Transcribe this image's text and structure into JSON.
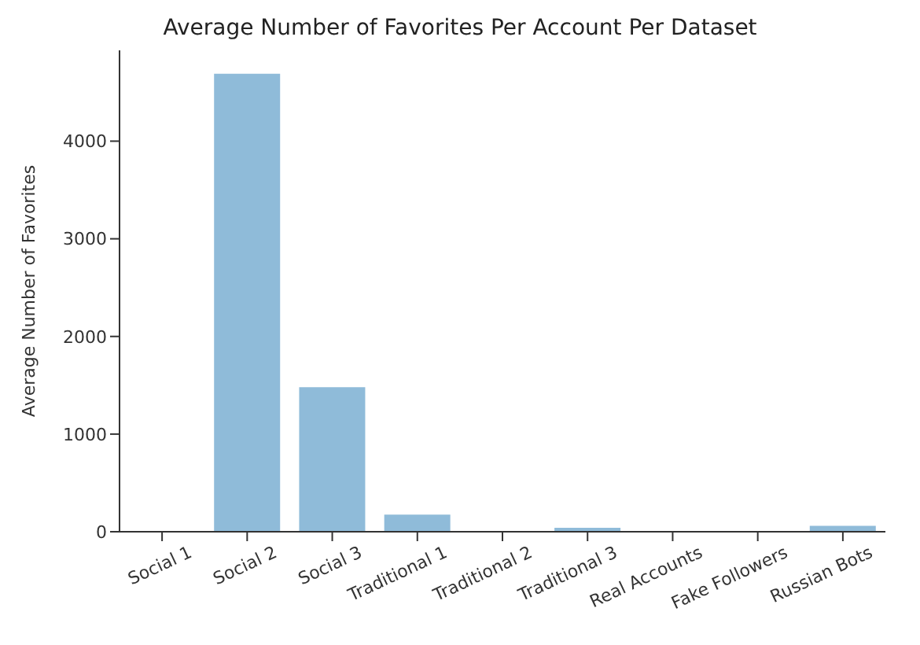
{
  "chart_data": {
    "type": "bar",
    "title": "Average Number of Favorites Per Account Per Dataset",
    "ylabel": "Average Number of Favorites",
    "categories": [
      "Social 1",
      "Social 2",
      "Social 3",
      "Traditional 1",
      "Traditional 2",
      "Traditional 3",
      "Real Accounts",
      "Fake Followers",
      "Russian Bots"
    ],
    "values": [
      0,
      4690,
      1480,
      175,
      0,
      40,
      0,
      0,
      60
    ],
    "color": "#8fbbd9",
    "ylim": [
      0,
      4930
    ],
    "yticks": [
      0,
      1000,
      2000,
      3000,
      4000
    ],
    "grid": false,
    "legend": false
  }
}
